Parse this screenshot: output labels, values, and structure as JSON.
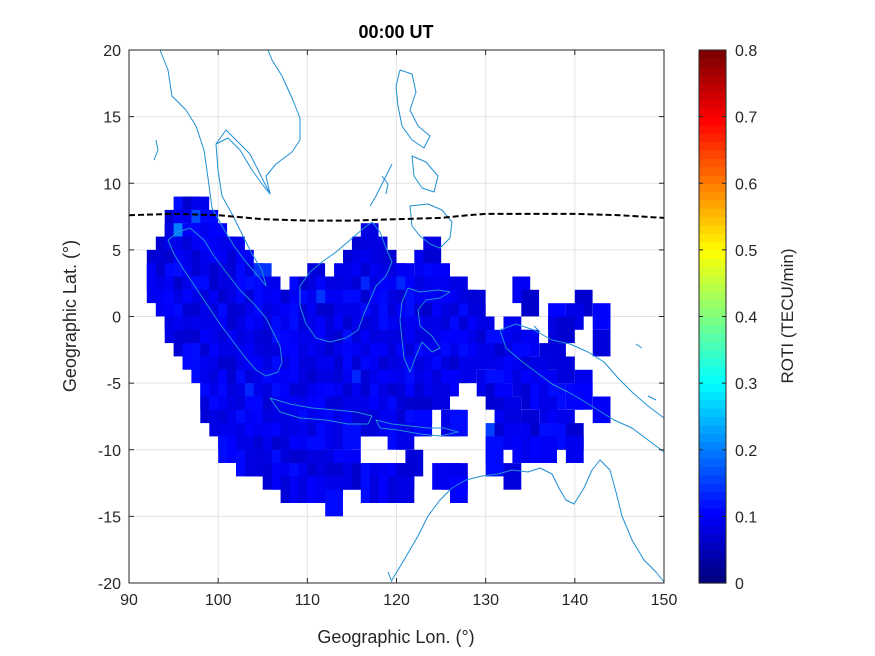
{
  "chart_data": {
    "type": "heatmap",
    "title": "00:00 UT",
    "xlabel": "Geographic Lon. (°)",
    "ylabel": "Geographic Lat. (°)",
    "xlim": [
      90,
      150
    ],
    "ylim": [
      -20,
      20
    ],
    "xticks": [
      90,
      100,
      110,
      120,
      130,
      140,
      150
    ],
    "yticks": [
      -20,
      -15,
      -10,
      -5,
      0,
      5,
      10,
      15,
      20
    ],
    "grid": true,
    "colorbar": {
      "label": "ROTI (TECU/min)",
      "colormap": "jet",
      "clim": [
        0,
        0.8
      ],
      "ticks": [
        0,
        0.1,
        0.2,
        0.3,
        0.4,
        0.5,
        0.6,
        0.7,
        0.8
      ]
    },
    "cell_size_deg": [
      2,
      2
    ],
    "cells_lat_ranges": [
      {
        "lat": 8,
        "lon_ranges": [
          [
            96,
            98
          ]
        ]
      },
      {
        "lat": 7,
        "lon_ranges": [
          [
            95,
            99
          ]
        ]
      },
      {
        "lat": 6,
        "lon_ranges": [
          [
            95,
            100
          ],
          [
            117,
            117
          ]
        ]
      },
      {
        "lat": 5,
        "lon_ranges": [
          [
            94,
            102
          ],
          [
            116,
            118
          ],
          [
            124,
            124
          ]
        ]
      },
      {
        "lat": 4,
        "lon_ranges": [
          [
            93,
            103
          ],
          [
            115,
            119
          ],
          [
            123,
            124
          ]
        ]
      },
      {
        "lat": 3,
        "lon_ranges": [
          [
            93,
            105
          ],
          [
            111,
            111
          ],
          [
            114,
            121
          ],
          [
            124,
            125
          ]
        ]
      },
      {
        "lat": 2,
        "lon_ranges": [
          [
            93,
            106
          ],
          [
            109,
            126
          ],
          [
            127,
            127
          ],
          [
            134,
            134
          ]
        ]
      },
      {
        "lat": 1,
        "lon_ranges": [
          [
            94,
            127
          ],
          [
            128,
            129
          ],
          [
            135,
            135
          ],
          [
            141,
            141
          ]
        ]
      },
      {
        "lat": 0,
        "lon_ranges": [
          [
            95,
            129
          ],
          [
            138,
            138
          ],
          [
            140,
            140
          ],
          [
            143,
            143
          ]
        ]
      },
      {
        "lat": -1,
        "lon_ranges": [
          [
            95,
            130
          ],
          [
            133,
            133
          ],
          [
            138,
            139
          ]
        ]
      },
      {
        "lat": -2,
        "lon_ranges": [
          [
            96,
            131
          ],
          [
            134,
            135
          ],
          [
            143,
            143
          ]
        ]
      },
      {
        "lat": -3,
        "lon_ranges": [
          [
            97,
            130
          ],
          [
            132,
            134
          ],
          [
            137,
            138
          ]
        ]
      },
      {
        "lat": -4,
        "lon_ranges": [
          [
            98,
            128
          ],
          [
            132,
            136
          ],
          [
            139,
            139
          ]
        ]
      },
      {
        "lat": -5,
        "lon_ranges": [
          [
            99,
            126
          ],
          [
            130,
            131
          ],
          [
            134,
            137
          ],
          [
            141,
            141
          ]
        ]
      },
      {
        "lat": -6,
        "lon_ranges": [
          [
            99,
            125
          ],
          [
            131,
            132
          ],
          [
            135,
            138
          ],
          [
            140,
            141
          ]
        ]
      },
      {
        "lat": -7,
        "lon_ranges": [
          [
            99,
            123
          ],
          [
            132,
            133
          ],
          [
            137,
            137
          ],
          [
            143,
            143
          ]
        ]
      },
      {
        "lat": -8,
        "lon_ranges": [
          [
            100,
            119
          ],
          [
            122,
            123
          ],
          [
            126,
            127
          ],
          [
            132,
            133
          ],
          [
            135,
            135
          ],
          [
            138,
            139
          ]
        ]
      },
      {
        "lat": -9,
        "lon_ranges": [
          [
            101,
            115
          ],
          [
            120,
            121
          ],
          [
            131,
            133
          ],
          [
            135,
            140
          ]
        ]
      },
      {
        "lat": -10,
        "lon_ranges": [
          [
            101,
            111
          ],
          [
            131,
            131
          ],
          [
            134,
            137
          ],
          [
            140,
            140
          ]
        ]
      },
      {
        "lat": -11,
        "lon_ranges": [
          [
            103,
            115
          ],
          [
            122,
            122
          ],
          [
            131,
            131
          ]
        ]
      },
      {
        "lat": -12,
        "lon_ranges": [
          [
            106,
            117
          ],
          [
            118,
            121
          ],
          [
            125,
            127
          ],
          [
            133,
            133
          ]
        ]
      },
      {
        "lat": -13,
        "lon_ranges": [
          [
            108,
            113
          ],
          [
            117,
            121
          ],
          [
            127,
            127
          ]
        ]
      },
      {
        "lat": -14,
        "lon_ranges": [
          [
            113,
            113
          ]
        ]
      }
    ],
    "highlights": [
      {
        "lon": 96,
        "lat": 6,
        "value": 0.2
      },
      {
        "lon": 98,
        "lat": 7,
        "value": 0.16
      },
      {
        "lon": 105,
        "lat": 3,
        "value": 0.14
      },
      {
        "lon": 117,
        "lat": 2,
        "value": 0.13
      },
      {
        "lon": 112,
        "lat": 1,
        "value": 0.14
      },
      {
        "lon": 121,
        "lat": 2,
        "value": 0.13
      },
      {
        "lon": 104,
        "lat": -6,
        "value": 0.13
      },
      {
        "lon": 116,
        "lat": -5,
        "value": 0.13
      },
      {
        "lon": 131,
        "lat": -9,
        "value": 0.15
      }
    ],
    "dashed_line": {
      "lon": [
        90,
        95,
        100,
        105,
        110,
        115,
        120,
        125,
        128,
        130,
        135,
        140,
        145,
        150
      ],
      "lat": [
        7.6,
        7.7,
        7.6,
        7.3,
        7.2,
        7.2,
        7.3,
        7.4,
        7.6,
        7.7,
        7.7,
        7.7,
        7.6,
        7.4
      ]
    }
  },
  "coastline_color": "#1f8fd4",
  "grid_color": "#e3e3e3"
}
